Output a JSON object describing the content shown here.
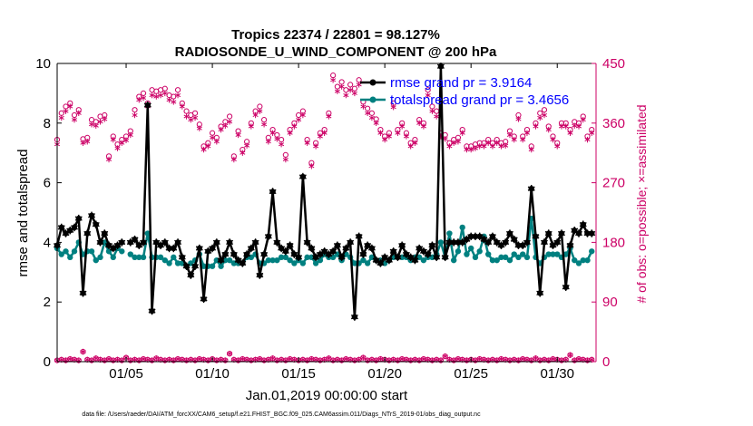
{
  "chart_data": {
    "type": "line",
    "title": "Tropics 22374 / 22801 = 98.127%",
    "subtitle": "RADIOSONDE_U_WIND_COMPONENT @ 200 hPa",
    "xlabel": "Jan.01,2019 00:00:00 start",
    "ylabel": "rmse and totalspread",
    "y2label": "# of obs: o=possible; ×=assimilated",
    "xlim": [
      1,
      32.25
    ],
    "ylim": [
      0,
      10
    ],
    "y2lim": [
      0,
      450
    ],
    "x_ticks": [
      5,
      10,
      15,
      20,
      25,
      30
    ],
    "x_tick_labels": [
      "01/05",
      "01/10",
      "01/15",
      "01/20",
      "01/25",
      "01/30"
    ],
    "y_ticks": [
      0,
      2,
      4,
      6,
      8,
      10
    ],
    "y2_ticks": [
      0,
      90,
      180,
      270,
      360,
      450
    ],
    "legend_position": "top-right",
    "footnote": "data file: /Users/raeder/DAI/ATM_forcXX/CAM6_setup/f.e21.FHIST_BGC.f09_025.CAM6assim.011/Diags_NTrS_2019-01/obs_diag_output.nc",
    "colors": {
      "rmse": "#000000",
      "spread": "#008080",
      "obs": "#cc0066"
    },
    "x": [
      1,
      1.25,
      1.5,
      1.75,
      2,
      2.25,
      2.5,
      2.75,
      3,
      3.25,
      3.5,
      3.75,
      4,
      4.25,
      4.5,
      4.75,
      5,
      5.25,
      5.5,
      5.75,
      6,
      6.25,
      6.5,
      6.75,
      7,
      7.25,
      7.5,
      7.75,
      8,
      8.25,
      8.5,
      8.75,
      9,
      9.25,
      9.5,
      9.75,
      10,
      10.25,
      10.5,
      10.75,
      11,
      11.25,
      11.5,
      11.75,
      12,
      12.25,
      12.5,
      12.75,
      13,
      13.25,
      13.5,
      13.75,
      14,
      14.25,
      14.5,
      14.75,
      15,
      15.25,
      15.5,
      15.75,
      16,
      16.25,
      16.5,
      16.75,
      17,
      17.25,
      17.5,
      17.75,
      18,
      18.25,
      18.5,
      18.75,
      19,
      19.25,
      19.5,
      19.75,
      20,
      20.25,
      20.5,
      20.75,
      21,
      21.25,
      21.5,
      21.75,
      22,
      22.25,
      22.5,
      22.75,
      23,
      23.25,
      23.5,
      23.75,
      24,
      24.25,
      24.5,
      24.75,
      25,
      25.25,
      25.5,
      25.75,
      26,
      26.25,
      26.5,
      26.75,
      27,
      27.25,
      27.5,
      27.75,
      28,
      28.25,
      28.5,
      28.75,
      29,
      29.25,
      29.5,
      29.75,
      30,
      30.25,
      30.5,
      30.75,
      31,
      31.25,
      31.5,
      31.75,
      32
    ],
    "series": [
      {
        "name": "rmse grand pr = 3.9164",
        "key": "rmse",
        "values": [
          3.9,
          4.5,
          4.3,
          4.4,
          4.5,
          4.8,
          2.3,
          4.3,
          4.9,
          4.6,
          4.0,
          4.3,
          3.9,
          3.8,
          3.9,
          4.0,
          null,
          4.0,
          4.1,
          3.9,
          4.0,
          8.6,
          1.7,
          4.0,
          3.9,
          4.0,
          3.8,
          3.8,
          4.0,
          3.5,
          3.2,
          2.9,
          3.2,
          3.8,
          2.1,
          3.7,
          3.8,
          4.0,
          3.4,
          3.6,
          4.0,
          3.6,
          3.4,
          3.3,
          3.6,
          3.8,
          4.0,
          2.9,
          3.6,
          4.2,
          5.7,
          4.0,
          3.8,
          3.7,
          3.9,
          3.6,
          3.5,
          6.2,
          4.0,
          3.8,
          3.5,
          3.6,
          3.7,
          3.6,
          3.7,
          3.9,
          3.5,
          3.8,
          4.0,
          1.5,
          4.2,
          3.6,
          3.9,
          3.8,
          3.4,
          3.3,
          3.5,
          3.4,
          3.7,
          3.5,
          3.9,
          3.6,
          3.5,
          3.4,
          3.8,
          3.7,
          3.6,
          3.9,
          3.5,
          9.9,
          3.5,
          4.0,
          4.0,
          4.0,
          4.0,
          4.1,
          4.2,
          4.2,
          4.2,
          4.1,
          4.0,
          4.2,
          4.0,
          3.9,
          4.0,
          4.3,
          4.1,
          3.9,
          3.9,
          4.0,
          5.8,
          4.2,
          2.3,
          4.0,
          4.3,
          3.9,
          4.0,
          4.3,
          2.5,
          3.9,
          4.4,
          4.3,
          4.6,
          4.3,
          4.3
        ]
      },
      {
        "name": "totalspread grand pr = 3.4656",
        "key": "spread",
        "values": [
          3.8,
          3.6,
          3.7,
          3.5,
          3.7,
          4.0,
          3.6,
          3.7,
          3.7,
          3.4,
          3.5,
          4.0,
          3.7,
          3.5,
          3.8,
          3.7,
          null,
          3.6,
          3.5,
          3.5,
          3.5,
          4.3,
          3.5,
          3.5,
          3.5,
          3.4,
          3.3,
          3.5,
          3.3,
          3.3,
          3.2,
          3.3,
          3.4,
          3.6,
          3.2,
          3.2,
          3.2,
          3.4,
          3.2,
          3.4,
          3.4,
          3.3,
          3.3,
          3.3,
          3.5,
          3.5,
          3.6,
          3.3,
          3.3,
          3.4,
          3.4,
          3.4,
          3.5,
          3.5,
          3.4,
          3.3,
          3.4,
          3.3,
          3.5,
          3.5,
          3.3,
          3.4,
          3.6,
          3.5,
          3.5,
          3.6,
          3.4,
          3.6,
          3.5,
          3.3,
          3.3,
          3.4,
          3.3,
          3.5,
          3.4,
          3.4,
          3.3,
          3.4,
          3.5,
          3.5,
          3.5,
          3.5,
          3.4,
          3.5,
          3.5,
          3.4,
          3.5,
          3.5,
          3.6,
          4.0,
          3.5,
          4.3,
          3.4,
          3.7,
          4.5,
          3.6,
          3.8,
          3.5,
          3.7,
          4.2,
          3.6,
          3.4,
          3.4,
          3.5,
          3.5,
          3.4,
          3.6,
          3.5,
          3.6,
          3.5,
          4.8,
          3.5,
          3.3,
          3.5,
          3.6,
          3.6,
          3.6,
          3.5,
          3.6,
          3.8,
          3.4,
          3.3,
          3.4,
          3.4,
          3.7
        ]
      }
    ],
    "obs_possible": [
      335,
      375,
      385,
      390,
      372,
      380,
      336,
      338,
      365,
      362,
      370,
      372,
      310,
      340,
      328,
      335,
      340,
      348,
      380,
      400,
      405,
      390,
      410,
      408,
      410,
      412,
      402,
      400,
      410,
      390,
      378,
      372,
      375,
      358,
      325,
      330,
      345,
      338,
      355,
      362,
      370,
      310,
      348,
      320,
      332,
      360,
      378,
      385,
      365,
      338,
      350,
      342,
      335,
      312,
      350,
      360,
      372,
      378,
      335,
      300,
      330,
      345,
      350,
      375,
      432,
      415,
      422,
      410,
      418,
      412,
      425,
      392,
      382,
      375,
      366,
      350,
      340,
      345,
      390,
      350,
      360,
      345,
      330,
      335,
      365,
      360,
      410,
      385,
      378,
      345,
      342,
      330,
      335,
      338,
      350,
      325,
      325,
      328,
      330,
      330,
      335,
      330,
      335,
      330,
      332,
      348,
      340,
      372,
      340,
      350,
      325,
      360,
      375,
      380,
      355,
      340,
      330,
      360,
      360,
      350,
      362,
      360,
      370,
      340,
      350
    ],
    "obs_assimilated": [
      328,
      368,
      378,
      385,
      365,
      375,
      330,
      332,
      358,
      356,
      362,
      366,
      305,
      335,
      322,
      330,
      334,
      342,
      372,
      395,
      398,
      385,
      402,
      400,
      402,
      405,
      395,
      392,
      402,
      385,
      370,
      365,
      368,
      352,
      320,
      325,
      338,
      332,
      350,
      356,
      362,
      305,
      342,
      315,
      326,
      355,
      372,
      378,
      358,
      332,
      345,
      336,
      328,
      305,
      345,
      355,
      365,
      372,
      330,
      295,
      325,
      340,
      345,
      370,
      425,
      408,
      415,
      402,
      410,
      405,
      418,
      385,
      375,
      368,
      360,
      345,
      335,
      340,
      384,
      345,
      355,
      340,
      325,
      330,
      360,
      355,
      402,
      378,
      370,
      340,
      336,
      325,
      330,
      332,
      345,
      320,
      320,
      322,
      325,
      325,
      330,
      325,
      330,
      325,
      326,
      342,
      335,
      366,
      335,
      345,
      320,
      355,
      368,
      372,
      350,
      335,
      325,
      355,
      355,
      345,
      356,
      355,
      365,
      335,
      345
    ],
    "obs_rejected": [
      2,
      3,
      2,
      4,
      3,
      2,
      15,
      3,
      2,
      5,
      3,
      2,
      4,
      2,
      3,
      2,
      6,
      2,
      3,
      2,
      4,
      3,
      2,
      5,
      3,
      2,
      3,
      2,
      4,
      3,
      2,
      3,
      2,
      4,
      3,
      2,
      4,
      2,
      3,
      2,
      12,
      3,
      2,
      4,
      3,
      2,
      3,
      4,
      2,
      3,
      5,
      2,
      3,
      2,
      4,
      3,
      2,
      3,
      2,
      4,
      3,
      2,
      3,
      5,
      2,
      3,
      2,
      4,
      3,
      2,
      3,
      6,
      2,
      3,
      2,
      4,
      3,
      2,
      3,
      2,
      4,
      3,
      2,
      3,
      2,
      4,
      3,
      2,
      3,
      2,
      8,
      3,
      2,
      4,
      3,
      2,
      3,
      2,
      4,
      3,
      2,
      3,
      2,
      4,
      3,
      2,
      3,
      2,
      4,
      3,
      2,
      5,
      2,
      3,
      2,
      4,
      3,
      2,
      3,
      10,
      2,
      4,
      3,
      2,
      3
    ]
  }
}
